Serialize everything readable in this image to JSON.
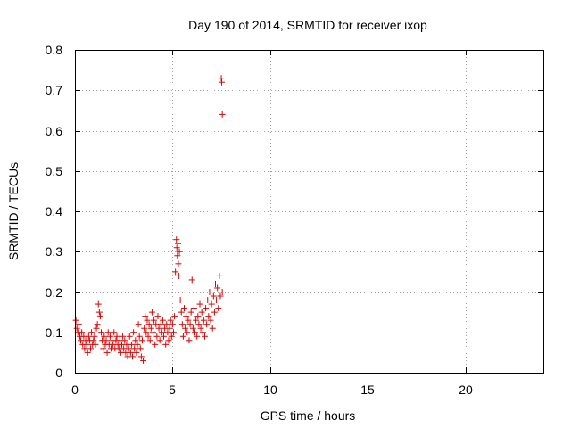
{
  "chart_data": {
    "type": "scatter",
    "title": "Day 190 of 2014, SRMTID for receiver ixop",
    "xlabel": "GPS time / hours",
    "ylabel": "SRMTID / TECUs",
    "xlim": [
      0,
      24
    ],
    "ylim": [
      0,
      0.8
    ],
    "xticks": [
      0,
      5,
      10,
      15,
      20
    ],
    "yticks": [
      0,
      0.1,
      0.2,
      0.3,
      0.4,
      0.5,
      0.6,
      0.7,
      0.8
    ],
    "xtick_labels": [
      "0",
      "5",
      "10",
      "15",
      "20"
    ],
    "ytick_labels": [
      "0",
      "0.1",
      "0.2",
      "0.3",
      "0.4",
      "0.5",
      "0.6",
      "0.7",
      "0.8"
    ],
    "grid": true,
    "marker": "+",
    "color": "#dd0000",
    "series": [
      {
        "name": "SRMTID",
        "points": [
          [
            0.05,
            0.13
          ],
          [
            0.1,
            0.11
          ],
          [
            0.15,
            0.1
          ],
          [
            0.2,
            0.12
          ],
          [
            0.25,
            0.09
          ],
          [
            0.3,
            0.08
          ],
          [
            0.35,
            0.1
          ],
          [
            0.4,
            0.07
          ],
          [
            0.45,
            0.09
          ],
          [
            0.5,
            0.06
          ],
          [
            0.55,
            0.08
          ],
          [
            0.6,
            0.07
          ],
          [
            0.65,
            0.05
          ],
          [
            0.7,
            0.09
          ],
          [
            0.75,
            0.08
          ],
          [
            0.8,
            0.06
          ],
          [
            0.85,
            0.1
          ],
          [
            0.9,
            0.07
          ],
          [
            0.95,
            0.08
          ],
          [
            1.0,
            0.09
          ],
          [
            1.05,
            0.07
          ],
          [
            1.1,
            0.11
          ],
          [
            1.15,
            0.12
          ],
          [
            1.2,
            0.17
          ],
          [
            1.25,
            0.15
          ],
          [
            1.3,
            0.14
          ],
          [
            1.35,
            0.1
          ],
          [
            1.4,
            0.08
          ],
          [
            1.45,
            0.06
          ],
          [
            1.5,
            0.09
          ],
          [
            1.55,
            0.07
          ],
          [
            1.6,
            0.08
          ],
          [
            1.65,
            0.05
          ],
          [
            1.7,
            0.1
          ],
          [
            1.75,
            0.07
          ],
          [
            1.8,
            0.09
          ],
          [
            1.85,
            0.06
          ],
          [
            1.9,
            0.08
          ],
          [
            1.95,
            0.07
          ],
          [
            2.0,
            0.1
          ],
          [
            2.05,
            0.06
          ],
          [
            2.1,
            0.08
          ],
          [
            2.15,
            0.09
          ],
          [
            2.2,
            0.07
          ],
          [
            2.25,
            0.06
          ],
          [
            2.3,
            0.08
          ],
          [
            2.35,
            0.05
          ],
          [
            2.4,
            0.07
          ],
          [
            2.45,
            0.09
          ],
          [
            2.5,
            0.06
          ],
          [
            2.55,
            0.08
          ],
          [
            2.6,
            0.05
          ],
          [
            2.65,
            0.07
          ],
          [
            2.7,
            0.04
          ],
          [
            2.75,
            0.06
          ],
          [
            2.8,
            0.09
          ],
          [
            2.85,
            0.05
          ],
          [
            2.9,
            0.07
          ],
          [
            2.95,
            0.04
          ],
          [
            3.0,
            0.1
          ],
          [
            3.05,
            0.06
          ],
          [
            3.1,
            0.08
          ],
          [
            3.15,
            0.05
          ],
          [
            3.2,
            0.07
          ],
          [
            3.25,
            0.12
          ],
          [
            3.3,
            0.09
          ],
          [
            3.35,
            0.06
          ],
          [
            3.4,
            0.04
          ],
          [
            3.45,
            0.08
          ],
          [
            3.5,
            0.03
          ],
          [
            3.55,
            0.11
          ],
          [
            3.6,
            0.14
          ],
          [
            3.65,
            0.1
          ],
          [
            3.7,
            0.13
          ],
          [
            3.75,
            0.09
          ],
          [
            3.8,
            0.12
          ],
          [
            3.85,
            0.08
          ],
          [
            3.9,
            0.11
          ],
          [
            3.95,
            0.15
          ],
          [
            4.0,
            0.1
          ],
          [
            4.05,
            0.13
          ],
          [
            4.1,
            0.07
          ],
          [
            4.15,
            0.12
          ],
          [
            4.2,
            0.09
          ],
          [
            4.25,
            0.14
          ],
          [
            4.3,
            0.11
          ],
          [
            4.35,
            0.08
          ],
          [
            4.4,
            0.12
          ],
          [
            4.45,
            0.1
          ],
          [
            4.5,
            0.13
          ],
          [
            4.55,
            0.09
          ],
          [
            4.6,
            0.11
          ],
          [
            4.65,
            0.07
          ],
          [
            4.7,
            0.12
          ],
          [
            4.75,
            0.1
          ],
          [
            4.8,
            0.08
          ],
          [
            4.85,
            0.11
          ],
          [
            4.9,
            0.13
          ],
          [
            4.95,
            0.09
          ],
          [
            5.0,
            0.12
          ],
          [
            5.05,
            0.1
          ],
          [
            5.1,
            0.14
          ],
          [
            5.15,
            0.25
          ],
          [
            5.2,
            0.33
          ],
          [
            5.22,
            0.31
          ],
          [
            5.25,
            0.29
          ],
          [
            5.28,
            0.32
          ],
          [
            5.3,
            0.27
          ],
          [
            5.32,
            0.24
          ],
          [
            5.35,
            0.3
          ],
          [
            5.4,
            0.18
          ],
          [
            5.45,
            0.15
          ],
          [
            5.5,
            0.12
          ],
          [
            5.55,
            0.09
          ],
          [
            5.6,
            0.16
          ],
          [
            5.65,
            0.11
          ],
          [
            5.7,
            0.14
          ],
          [
            5.75,
            0.1
          ],
          [
            5.8,
            0.13
          ],
          [
            5.85,
            0.08
          ],
          [
            5.9,
            0.12
          ],
          [
            5.95,
            0.15
          ],
          [
            6.0,
            0.23
          ],
          [
            6.05,
            0.11
          ],
          [
            6.1,
            0.16
          ],
          [
            6.15,
            0.1
          ],
          [
            6.2,
            0.13
          ],
          [
            6.25,
            0.09
          ],
          [
            6.3,
            0.14
          ],
          [
            6.35,
            0.12
          ],
          [
            6.4,
            0.17
          ],
          [
            6.45,
            0.11
          ],
          [
            6.5,
            0.15
          ],
          [
            6.55,
            0.1
          ],
          [
            6.6,
            0.13
          ],
          [
            6.65,
            0.09
          ],
          [
            6.7,
            0.16
          ],
          [
            6.75,
            0.12
          ],
          [
            6.8,
            0.18
          ],
          [
            6.85,
            0.14
          ],
          [
            6.9,
            0.2
          ],
          [
            6.95,
            0.13
          ],
          [
            7.0,
            0.17
          ],
          [
            7.05,
            0.11
          ],
          [
            7.1,
            0.19
          ],
          [
            7.15,
            0.15
          ],
          [
            7.2,
            0.22
          ],
          [
            7.25,
            0.18
          ],
          [
            7.3,
            0.21
          ],
          [
            7.35,
            0.16
          ],
          [
            7.4,
            0.24
          ],
          [
            7.45,
            0.19
          ],
          [
            7.5,
            0.73
          ],
          [
            7.52,
            0.72
          ],
          [
            7.55,
            0.64
          ],
          [
            7.55,
            0.2
          ]
        ]
      }
    ]
  }
}
